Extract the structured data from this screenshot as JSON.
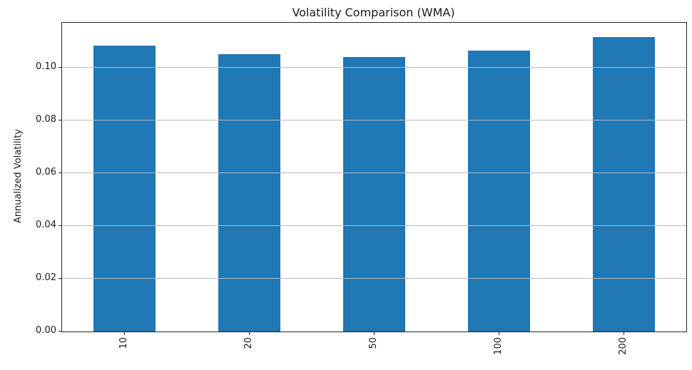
{
  "chart_data": {
    "type": "bar",
    "title": "Volatility Comparison (WMA)",
    "xlabel": "",
    "ylabel": "Annualized Volatility",
    "categories": [
      "10",
      "20",
      "50",
      "100",
      "200"
    ],
    "values": [
      0.1084,
      0.1051,
      0.104,
      0.1065,
      0.1115
    ],
    "ylim": [
      0,
      0.117
    ],
    "yticks": [
      0.0,
      0.02,
      0.04,
      0.06,
      0.08,
      0.1
    ],
    "ytick_labels": [
      "0.00",
      "0.02",
      "0.04",
      "0.06",
      "0.08",
      "0.10"
    ],
    "x_tick_rotation": 90,
    "grid": true,
    "grid_axis": "y",
    "grid_on_top": true,
    "legend": "none",
    "bar_color": "#1f77b4",
    "grid_color": "#bcbcbc",
    "spine_color": "#262626",
    "bar_width_ratio": 0.5
  }
}
